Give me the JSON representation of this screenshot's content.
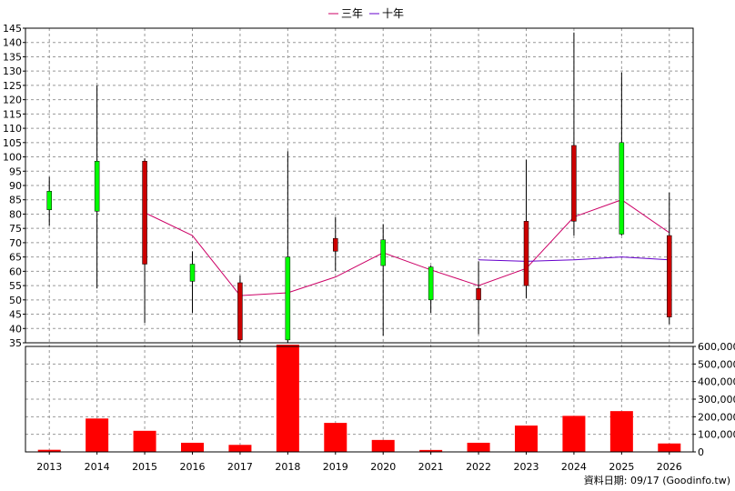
{
  "chart_data": {
    "type": "candlestick",
    "categories": [
      "2013",
      "2014",
      "2015",
      "2016",
      "2017",
      "2018",
      "2019",
      "2020",
      "2021",
      "2022",
      "2023",
      "2024",
      "2025",
      "2026"
    ],
    "ohlc": [
      {
        "year": "2013",
        "open": 81.5,
        "high": 93,
        "low": 76,
        "close": 88
      },
      {
        "year": "2014",
        "open": 81,
        "high": 125,
        "low": 54,
        "close": 98.5
      },
      {
        "year": "2015",
        "open": 98.5,
        "high": 99.5,
        "low": 42,
        "close": 62.5
      },
      {
        "year": "2016",
        "open": 56.5,
        "high": 67,
        "low": 45.5,
        "close": 62.5
      },
      {
        "year": "2017",
        "open": 56,
        "high": 58.5,
        "low": 35,
        "close": 36
      },
      {
        "year": "2018",
        "open": 36,
        "high": 102,
        "low": 35,
        "close": 65
      },
      {
        "year": "2019",
        "open": 71.5,
        "high": 79,
        "low": 60,
        "close": 67
      },
      {
        "year": "2020",
        "open": 62,
        "high": 76.5,
        "low": 37.5,
        "close": 71
      },
      {
        "year": "2021",
        "open": 50,
        "high": 62,
        "low": 45.5,
        "close": 61.5
      },
      {
        "year": "2022",
        "open": 54,
        "high": 63.5,
        "low": 38,
        "close": 50
      },
      {
        "year": "2023",
        "open": 77.5,
        "high": 99,
        "low": 50.5,
        "close": 55
      },
      {
        "year": "2024",
        "open": 104,
        "high": 143.5,
        "low": 72.5,
        "close": 77.5
      },
      {
        "year": "2025",
        "open": 73,
        "high": 129.5,
        "low": 72.5,
        "close": 105
      },
      {
        "year": "2026",
        "open": 72.5,
        "high": 87.5,
        "low": 41.5,
        "close": 44
      }
    ],
    "up_color": "#00ff00",
    "down_color": "#cc0000",
    "ma_lines": [
      {
        "name": "三年",
        "color": "#cc0066",
        "values": [
          null,
          null,
          80.5,
          72.5,
          51.5,
          52.5,
          58,
          66.5,
          60.5,
          55,
          61,
          79,
          85,
          73.5
        ]
      },
      {
        "name": "十年",
        "color": "#6600cc",
        "values": [
          null,
          null,
          null,
          null,
          null,
          null,
          null,
          null,
          null,
          64,
          63.5,
          64,
          65,
          64
        ]
      }
    ],
    "volume": [
      12000,
      190000,
      120000,
      52000,
      40000,
      610000,
      165000,
      68000,
      11000,
      52000,
      150000,
      205000,
      232000,
      48000
    ],
    "volume_color": "#ff0000",
    "price_axis": {
      "min": 35,
      "max": 145,
      "ticks": [
        35,
        40,
        45,
        50,
        55,
        60,
        65,
        70,
        75,
        80,
        85,
        90,
        95,
        100,
        105,
        110,
        115,
        120,
        125,
        130,
        135,
        140,
        145
      ]
    },
    "volume_axis": {
      "min": 0,
      "max": 600000,
      "ticks": [
        "0",
        "100,000",
        "200,000",
        "300,000",
        "400,000",
        "500,000",
        "600,000"
      ]
    },
    "grid": true,
    "legend_position": "top-center"
  },
  "legend": {
    "ma3": "三年",
    "ma10": "十年"
  },
  "footer": "資料日期: 09/17 (Goodinfo.tw)"
}
